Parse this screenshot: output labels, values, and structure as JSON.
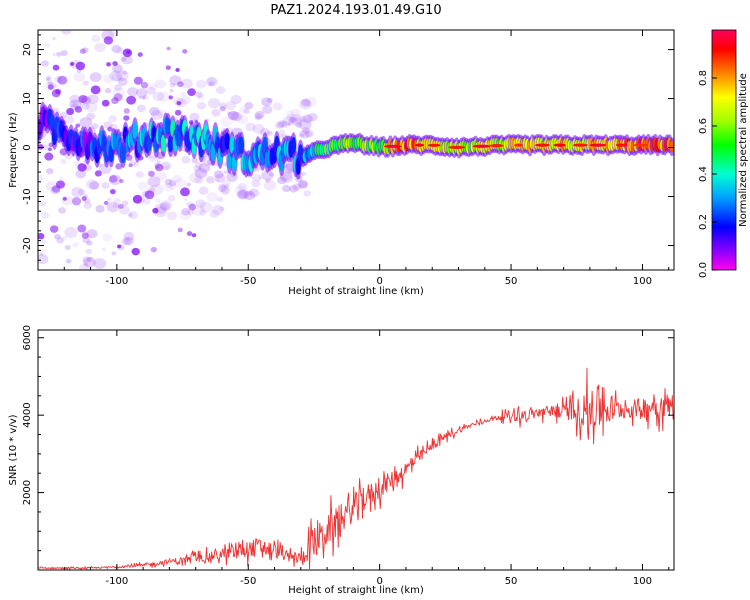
{
  "title": "PAZ1.2024.193.01.49.G10",
  "chart_data": [
    {
      "type": "heatmap",
      "xlabel": "Height of straight line (km)",
      "ylabel": "Frequency (Hz)",
      "xlim": [
        -130,
        112
      ],
      "ylim": [
        -25,
        24
      ],
      "x_ticks": [
        -100,
        -50,
        0,
        50,
        100
      ],
      "y_ticks": [
        -20,
        -10,
        0,
        10,
        20
      ],
      "colorbar": {
        "label": "Normalized spectral amplitude",
        "ticks": [
          0.0,
          0.2,
          0.4,
          0.6,
          0.8
        ],
        "range": [
          0,
          1
        ],
        "colormap": "gist_rainbow"
      },
      "trace": {
        "x": [
          -130,
          -120,
          -110,
          -100,
          -90,
          -80,
          -70,
          -60,
          -50,
          -40,
          -30,
          -25,
          -20,
          -10,
          0,
          10,
          20,
          30,
          40,
          50,
          60,
          70,
          80,
          90,
          100,
          110
        ],
        "frequency": [
          5,
          3,
          1,
          0,
          2,
          3,
          2,
          0,
          -2,
          -1,
          -2,
          -1,
          0,
          1,
          0,
          0.5,
          0.5,
          0,
          0.3,
          0.5,
          0.5,
          0.5,
          0.5,
          0.5,
          0.5,
          0.5
        ],
        "amplitude": [
          0.15,
          0.15,
          0.18,
          0.22,
          0.28,
          0.32,
          0.3,
          0.25,
          0.28,
          0.3,
          0.3,
          0.4,
          0.5,
          0.55,
          0.6,
          0.85,
          0.65,
          0.6,
          0.65,
          0.7,
          0.72,
          0.75,
          0.7,
          0.75,
          0.85,
          0.8
        ]
      }
    },
    {
      "type": "line",
      "xlabel": "Height of straight line (km)",
      "ylabel": "SNR (10 * v/v)",
      "xlim": [
        -130,
        112
      ],
      "ylim": [
        0,
        6200
      ],
      "x_ticks": [
        -100,
        -50,
        0,
        50,
        100
      ],
      "y_ticks": [
        2000,
        4000,
        6000
      ],
      "color": "#ee3333",
      "series": [
        {
          "x": [
            -130,
            -110,
            -100,
            -90,
            -80,
            -70,
            -60,
            -50,
            -45,
            -40,
            -35,
            -30,
            -25,
            -20,
            -15,
            -10,
            -5,
            0,
            5,
            10,
            15,
            20,
            25,
            30,
            35,
            40,
            45,
            50,
            55,
            60,
            65,
            70,
            75,
            80,
            85,
            90,
            95,
            100,
            105,
            110,
            112
          ],
          "y": [
            50,
            50,
            80,
            120,
            220,
            300,
            400,
            550,
            600,
            500,
            350,
            300,
            700,
            1000,
            1300,
            1600,
            1900,
            2100,
            2350,
            2600,
            2900,
            3200,
            3450,
            3600,
            3750,
            3850,
            3950,
            4000,
            4000,
            4050,
            4100,
            4100,
            4100,
            4150,
            4200,
            4150,
            4150,
            4200,
            4250,
            4250,
            4300
          ],
          "noise": [
            40,
            40,
            60,
            90,
            150,
            220,
            300,
            450,
            550,
            400,
            300,
            350,
            900,
            900,
            850,
            800,
            700,
            600,
            500,
            450,
            350,
            250,
            200,
            150,
            120,
            100,
            100,
            350,
            350,
            300,
            350,
            400,
            700,
            1200,
            1300,
            600,
            500,
            600,
            700,
            700,
            700
          ]
        }
      ]
    }
  ]
}
